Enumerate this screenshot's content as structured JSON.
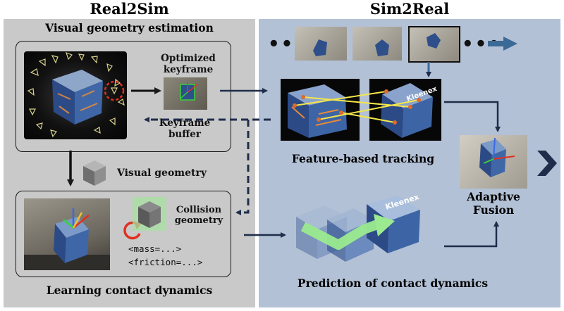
{
  "left": {
    "title": "Real2Sim",
    "visual_geometry_estimation": "Visual geometry estimation",
    "optimized_keyframe": "Optimized keyframe",
    "keyframe_buffer": "Keyframe buffer",
    "visual_geometry": "Visual geometry",
    "collision_geometry": "Collision geometry",
    "mass_param": "<mass=...>",
    "friction_param": "<friction=...>",
    "learning_contact_dynamics": "Learning contact dynamics"
  },
  "right": {
    "title": "Sim2Real",
    "feature_based_tracking": "Feature-based tracking",
    "adaptive_fusion": "Adaptive Fusion",
    "prediction_of_contact_dynamics": "Prediction of contact dynamics",
    "box_brand": "Kleenex"
  },
  "colors": {
    "left_panel": "#c9c9c9",
    "right_panel": "#b3c1d6",
    "arrow_dark": "#1f2d4a",
    "arrow_blue": "#3b6a96",
    "highlight_green": "#9bea8f",
    "match_yellow": "#f5e64a",
    "circle_red": "#e03020"
  }
}
